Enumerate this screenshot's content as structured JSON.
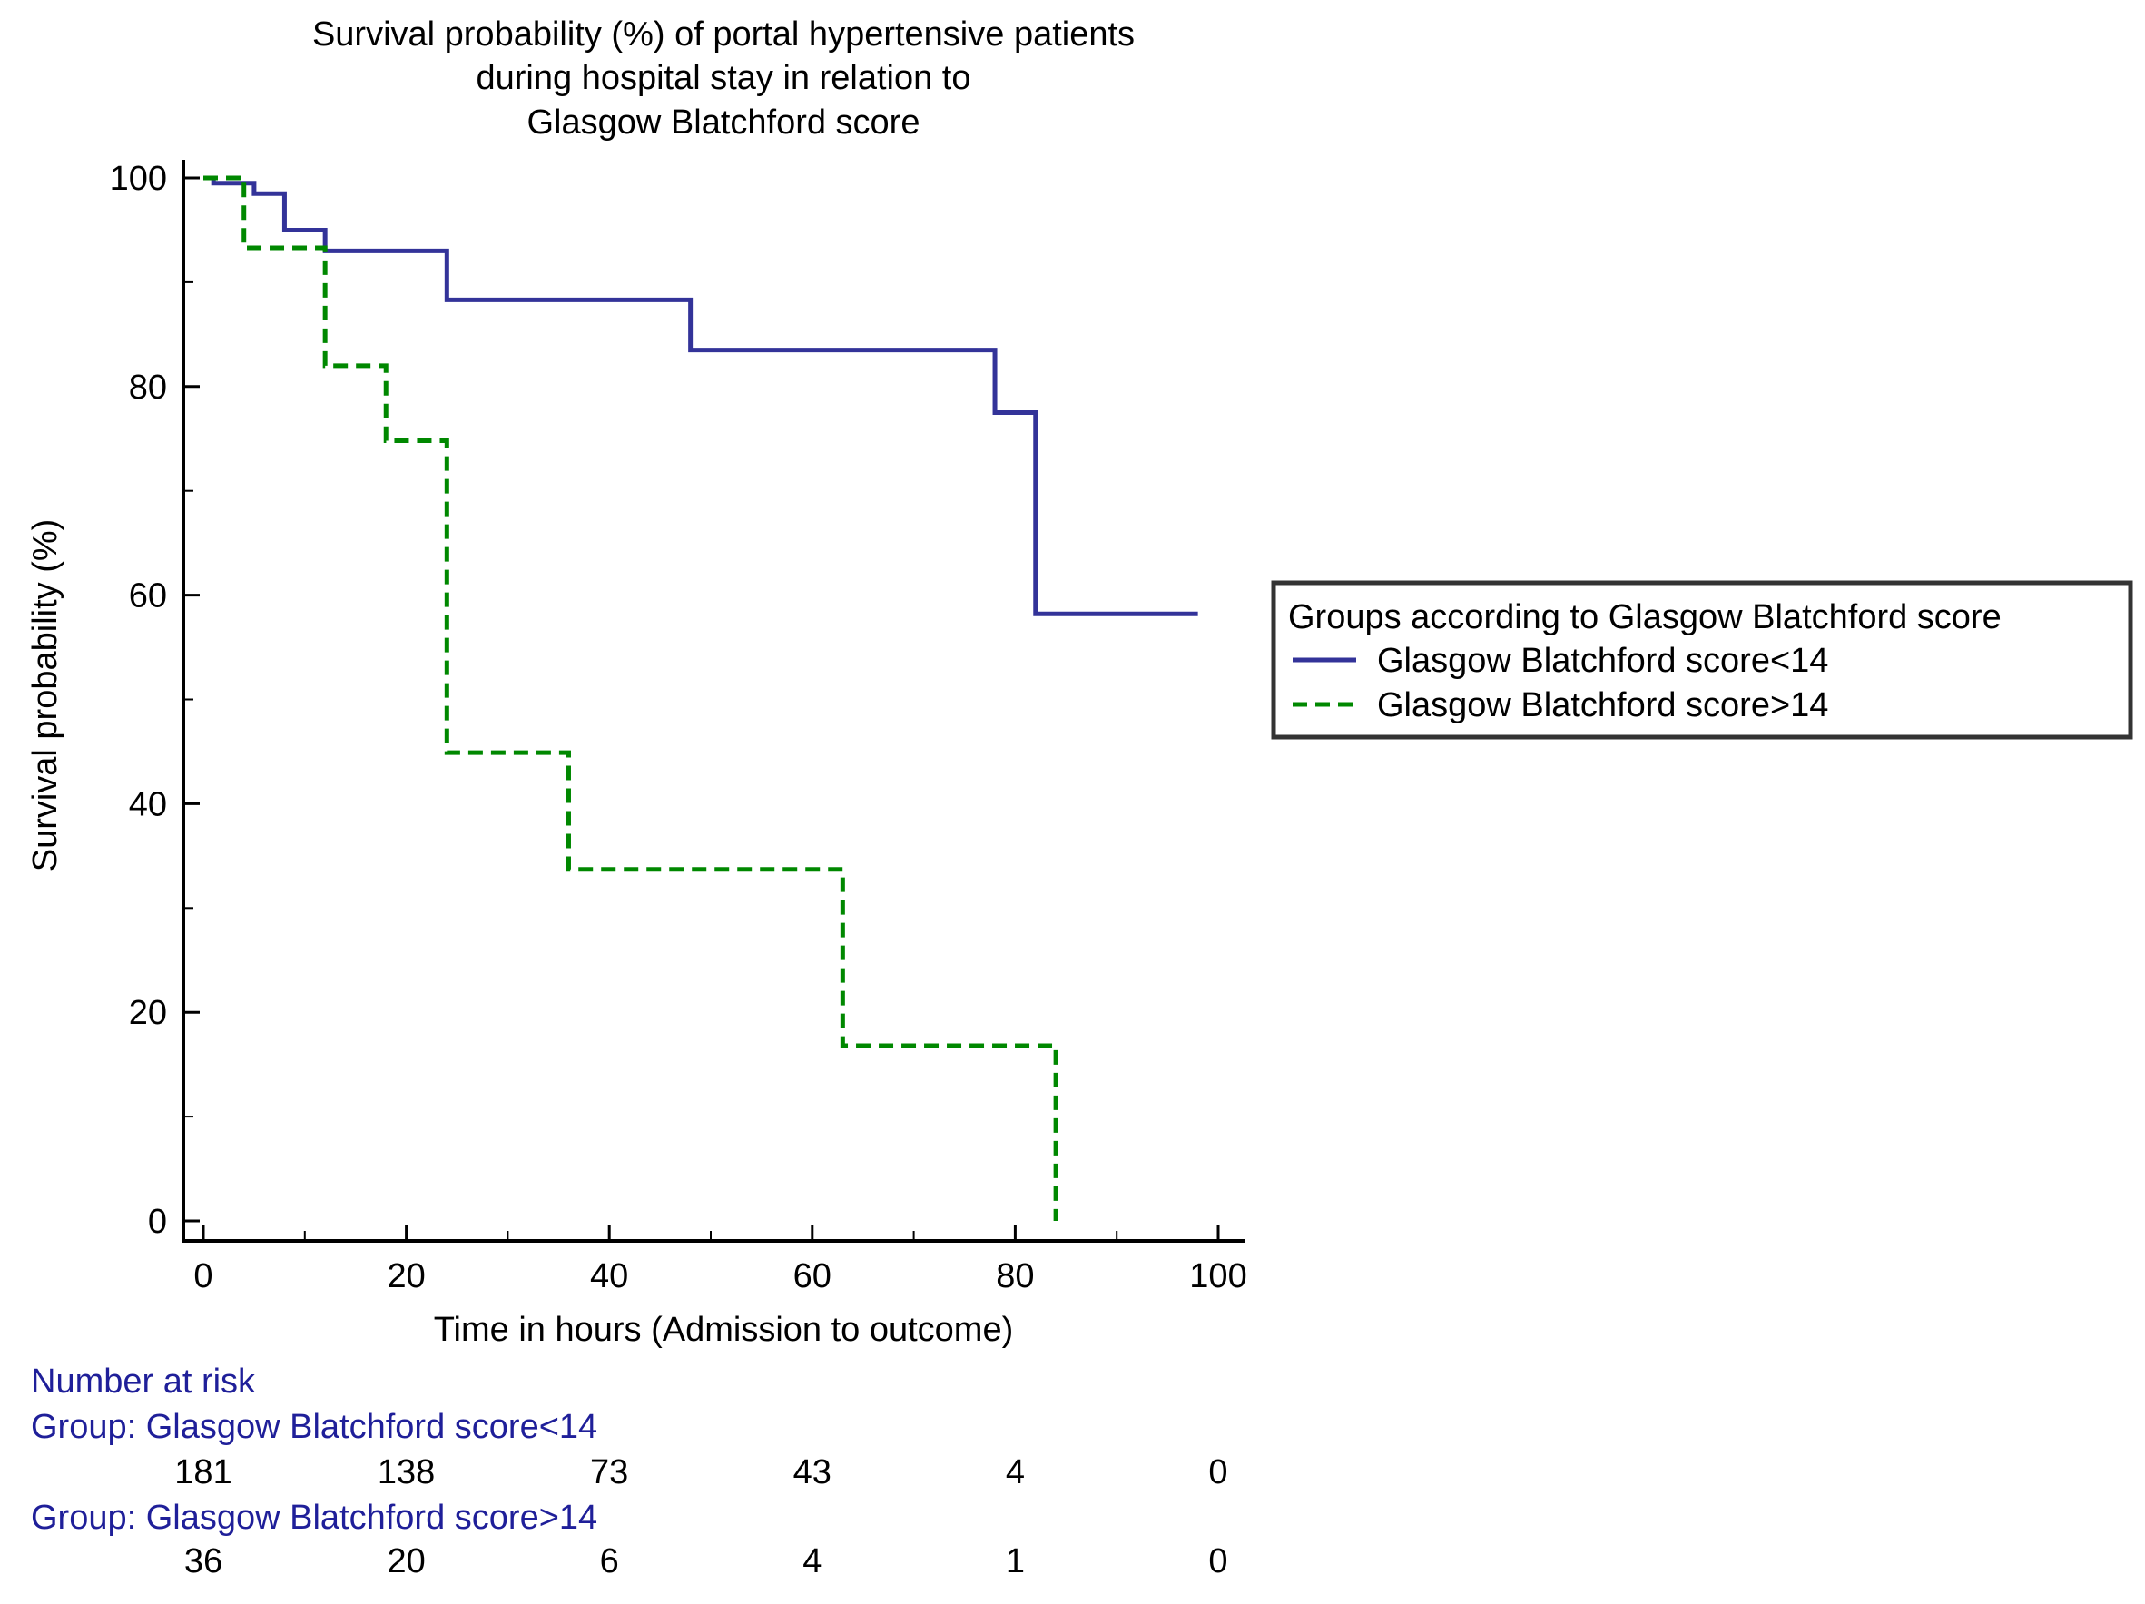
{
  "chart_data": {
    "type": "line",
    "subtype": "kaplan-meier-step",
    "title_lines": [
      "Survival probability (%) of portal hypertensive patients",
      "during hospital stay in relation to",
      "Glasgow Blatchford score"
    ],
    "xlabel": "Time in hours (Admission to outcome)",
    "ylabel": "Survival probability (%)",
    "xlim": [
      -2,
      102
    ],
    "ylim": [
      -2,
      102
    ],
    "x_ticks": [
      0,
      20,
      40,
      60,
      80,
      100
    ],
    "y_ticks": [
      0,
      20,
      40,
      60,
      80,
      100
    ],
    "grid": false,
    "legend": {
      "title": "Groups according to Glasgow Blatchford score",
      "position": "right"
    },
    "series": [
      {
        "name": "Glasgow Blatchford score<14",
        "color": "#333399",
        "style": "solid",
        "steps": [
          [
            0,
            100
          ],
          [
            1,
            99.5
          ],
          [
            5,
            98.5
          ],
          [
            8,
            95
          ],
          [
            12,
            93
          ],
          [
            24,
            88.3
          ],
          [
            48,
            83.5
          ],
          [
            78,
            77.5
          ],
          [
            82,
            58.2
          ],
          [
            98,
            58.2
          ]
        ]
      },
      {
        "name": "Glasgow Blatchford score>14",
        "color": "#008800",
        "style": "dashed",
        "steps": [
          [
            0,
            100
          ],
          [
            4,
            93.3
          ],
          [
            12,
            82
          ],
          [
            18,
            74.8
          ],
          [
            24,
            44.9
          ],
          [
            36,
            33.7
          ],
          [
            63,
            16.8
          ],
          [
            84,
            0
          ]
        ]
      }
    ],
    "risk_table": {
      "heading": "Number at risk",
      "times": [
        0,
        20,
        40,
        60,
        80,
        100
      ],
      "groups": [
        {
          "label": "Group: Glasgow Blatchford score<14",
          "values": [
            "181",
            "138",
            "73",
            "43",
            "4",
            "0"
          ]
        },
        {
          "label": "Group: Glasgow Blatchford score>14",
          "values": [
            "36",
            "20",
            "6",
            "4",
            "1",
            "0"
          ]
        }
      ]
    }
  },
  "colors": {
    "axis": "#000000",
    "risk_text": "#1f1f99",
    "legend_border": "#333333"
  }
}
